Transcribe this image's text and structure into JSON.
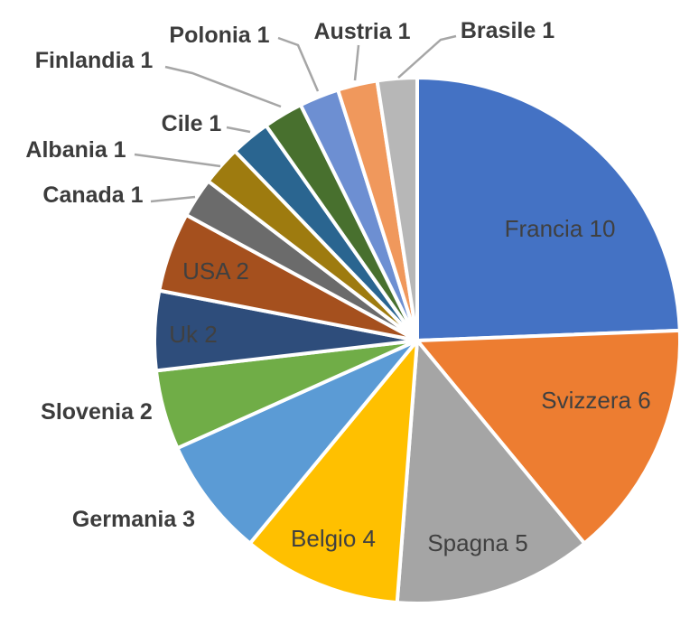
{
  "chart_data": {
    "type": "pie",
    "title": "",
    "total": 41,
    "direction": "clockwise",
    "start_angle_deg": 0,
    "label_format": "name value",
    "legend": "none",
    "label_color": "#404040",
    "leader_line_color": "#A6A6A6",
    "background_color": "#FFFFFF",
    "slice_border_color": "#FFFFFF",
    "slices": [
      {
        "label": "Francia",
        "value": 10,
        "color": "#4472C4",
        "label_placement": "inside"
      },
      {
        "label": "Svizzera",
        "value": 6,
        "color": "#ED7D31",
        "label_placement": "inside"
      },
      {
        "label": "Spagna",
        "value": 5,
        "color": "#A5A5A5",
        "label_placement": "inside"
      },
      {
        "label": "Belgio",
        "value": 4,
        "color": "#FFC000",
        "label_placement": "inside"
      },
      {
        "label": "Germania",
        "value": 3,
        "color": "#5B9BD5",
        "label_placement": "outside"
      },
      {
        "label": "Slovenia",
        "value": 2,
        "color": "#70AD47",
        "label_placement": "outside"
      },
      {
        "label": "Uk",
        "value": 2,
        "color": "#2E4D7B",
        "label_placement": "inside"
      },
      {
        "label": "USA",
        "value": 2,
        "color": "#A5501E",
        "label_placement": "inside"
      },
      {
        "label": "Canada",
        "value": 1,
        "color": "#6B6B6B",
        "label_placement": "outside-leader"
      },
      {
        "label": "Albania",
        "value": 1,
        "color": "#9E7B0F",
        "label_placement": "outside-leader"
      },
      {
        "label": "Cile",
        "value": 1,
        "color": "#2A6590",
        "label_placement": "outside-leader"
      },
      {
        "label": "Finlandia",
        "value": 1,
        "color": "#48702E",
        "label_placement": "outside-leader"
      },
      {
        "label": "Polonia",
        "value": 1,
        "color": "#6D8FD2",
        "label_placement": "outside-leader"
      },
      {
        "label": "Austria",
        "value": 1,
        "color": "#F0985C",
        "label_placement": "outside-leader"
      },
      {
        "label": "Brasile",
        "value": 1,
        "color": "#B7B7B7",
        "label_placement": "outside-leader"
      }
    ]
  }
}
